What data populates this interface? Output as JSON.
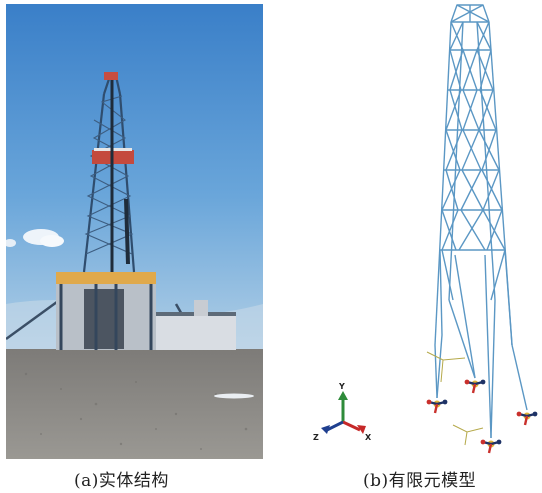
{
  "figure": {
    "caption_a": "(a)实体结构",
    "caption_b": "(b)有限元模型"
  },
  "triad": {
    "x_label": "X",
    "y_label": "Y",
    "z_label": "Z"
  },
  "colors": {
    "sky_top": "#3f86cc",
    "sky_bottom": "#a9c9e3",
    "ground": "#8e8c88",
    "derrick_steel": "#2f4d6e",
    "model_member": "#5b97c4",
    "support_red": "#c9302c",
    "support_navy": "#1e3266",
    "support_yellow": "#e0b43a",
    "triad_x": "#c62828",
    "triad_y": "#2e8b3a",
    "triad_z": "#1f3f8f"
  }
}
